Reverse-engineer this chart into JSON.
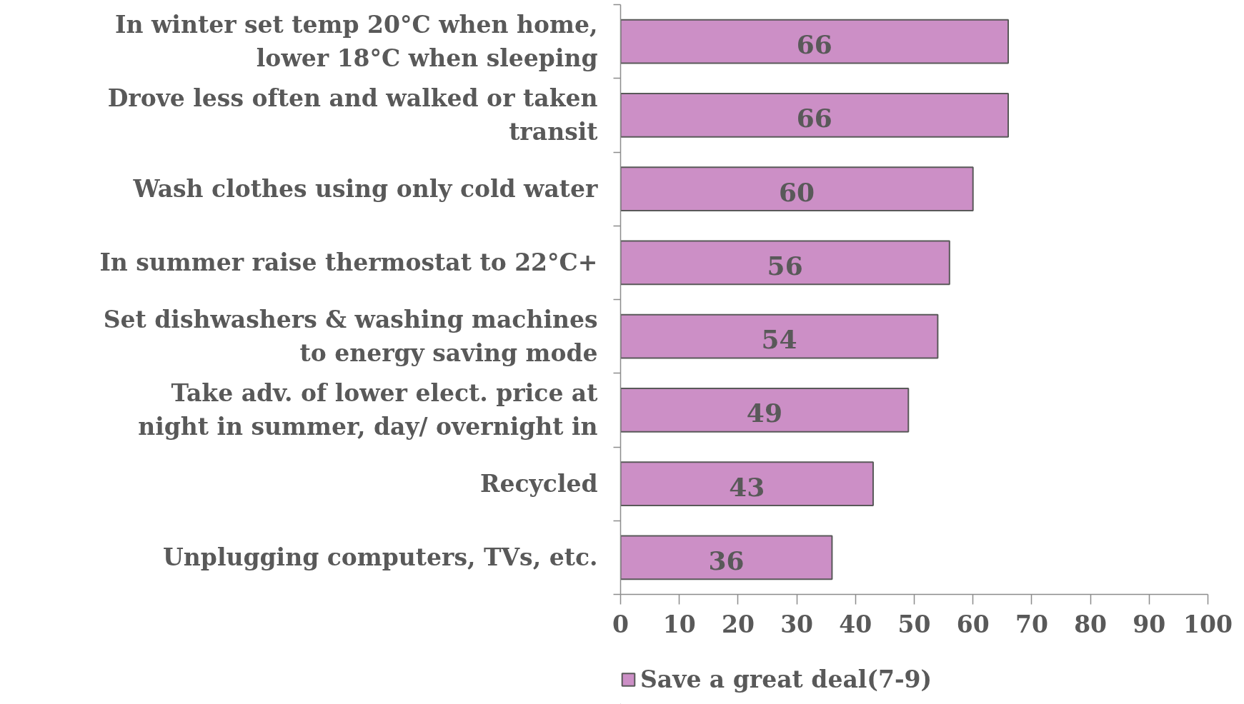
{
  "chart_data": {
    "type": "bar",
    "orientation": "horizontal",
    "categories": [
      "In winter set temp 20°C when home, lower 18°C when sleeping",
      "Drove less often and walked or taken transit",
      "Wash clothes using only cold water",
      "In summer raise thermostat to 22°C+",
      "Set dishwashers & washing machines to energy saving mode",
      "Take adv. of lower elect. price at night in summer, day/ overnight in",
      "Recycled",
      "Unplugging computers, TVs, etc."
    ],
    "series": [
      {
        "name": "Save a great deal(7-9)",
        "color": "#cc8fc6",
        "values": [
          66,
          66,
          60,
          56,
          54,
          49,
          43,
          36
        ]
      }
    ],
    "xlim": [
      0,
      100
    ],
    "xticks": [
      0,
      10,
      20,
      30,
      40,
      50,
      60,
      70,
      80,
      90,
      100
    ],
    "data_labels": true,
    "legend": "bottom",
    "grid": false
  }
}
